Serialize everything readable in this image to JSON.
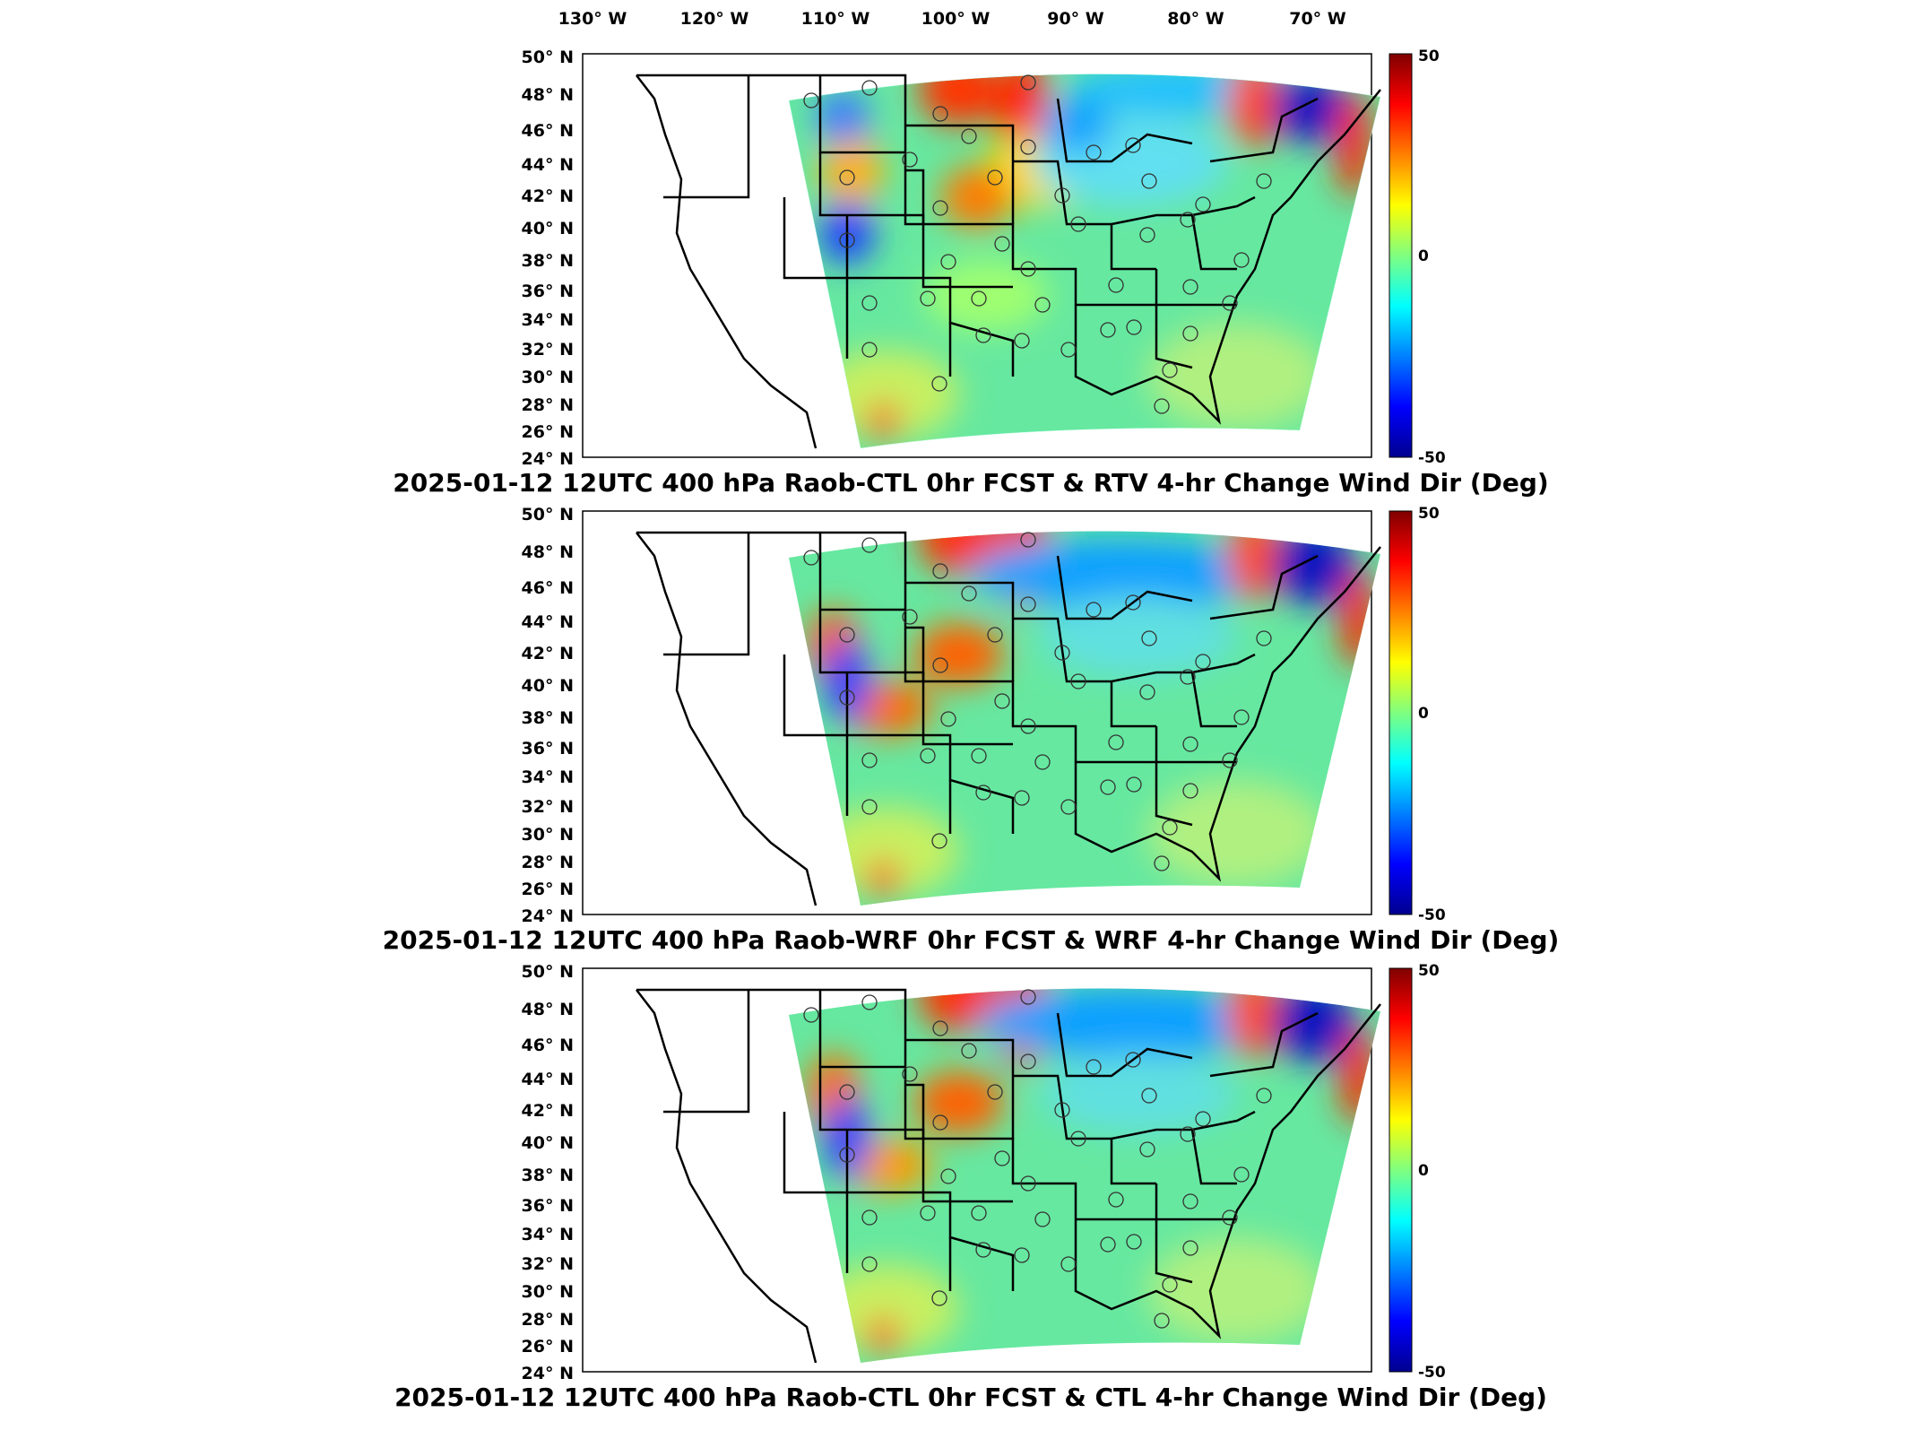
{
  "figure": {
    "lon_labels": [
      "130° W",
      "120° W",
      "110° W",
      "100° W",
      "90° W",
      "80° W",
      "70° W"
    ],
    "lat_labels": [
      "50° N",
      "48° N",
      "46° N",
      "44° N",
      "42° N",
      "40° N",
      "38° N",
      "36° N",
      "34° N",
      "32° N",
      "30° N",
      "28° N",
      "26° N",
      "24° N"
    ],
    "colorbar": {
      "ticks": [
        "50",
        "0",
        "-50"
      ],
      "min": -50,
      "max": 50,
      "colormap": "jet",
      "colors": [
        "#00008f",
        "#0000ff",
        "#00ffff",
        "#ffff00",
        "#ff0000",
        "#800000"
      ]
    },
    "panels": [
      {
        "title": "2025-01-12 12UTC 400 hPa Raob-CTL 0hr FCST & RTV 4-hr Change Wind Dir (Deg)"
      },
      {
        "title": "2025-01-12 12UTC 400 hPa Raob-WRF 0hr FCST & WRF 4-hr Change Wind Dir (Deg)"
      },
      {
        "title": "2025-01-12 12UTC 400 hPa Raob-CTL 0hr FCST & CTL 4-hr Change Wind Dir (Deg)"
      }
    ]
  }
}
